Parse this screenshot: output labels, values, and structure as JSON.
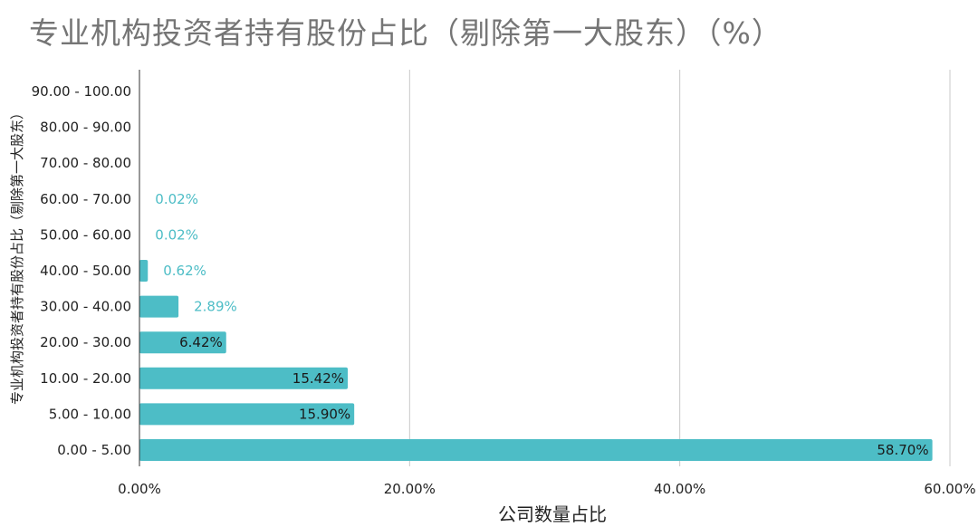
{
  "chart_data": {
    "type": "bar",
    "orientation": "horizontal",
    "title": "专业机构投资者持有股份占比（剔除第一大股东）（%）",
    "xlabel": "公司数量占比",
    "ylabel": "专业机构投资者持有股份占比（剔除第一大股东）",
    "categories": [
      "0.00 - 5.00",
      "5.00 - 10.00",
      "10.00 - 20.00",
      "20.00 - 30.00",
      "30.00 - 40.00",
      "40.00 - 50.00",
      "50.00 - 60.00",
      "60.00 - 70.00",
      "70.00 - 80.00",
      "80.00 - 90.00",
      "90.00 - 100.00"
    ],
    "values": [
      58.7,
      15.9,
      15.42,
      6.42,
      2.89,
      0.62,
      0.02,
      0.02,
      null,
      null,
      null
    ],
    "data_labels": [
      "58.70%",
      "15.90%",
      "15.42%",
      "6.42%",
      "2.89%",
      "0.62%",
      "0.02%",
      "0.02%",
      "",
      "",
      ""
    ],
    "xlim": [
      0,
      60
    ],
    "xticks": [
      0,
      20,
      40,
      60
    ],
    "xtick_labels": [
      "0.00%",
      "20.00%",
      "40.00%",
      "60.00%"
    ],
    "grid": true,
    "colors": {
      "bar": "#4dbdc6",
      "label_outside": "#4dbdc6",
      "label_inside": "#1a1a1a",
      "grid": "#c8c8c8",
      "title": "#757575"
    }
  }
}
